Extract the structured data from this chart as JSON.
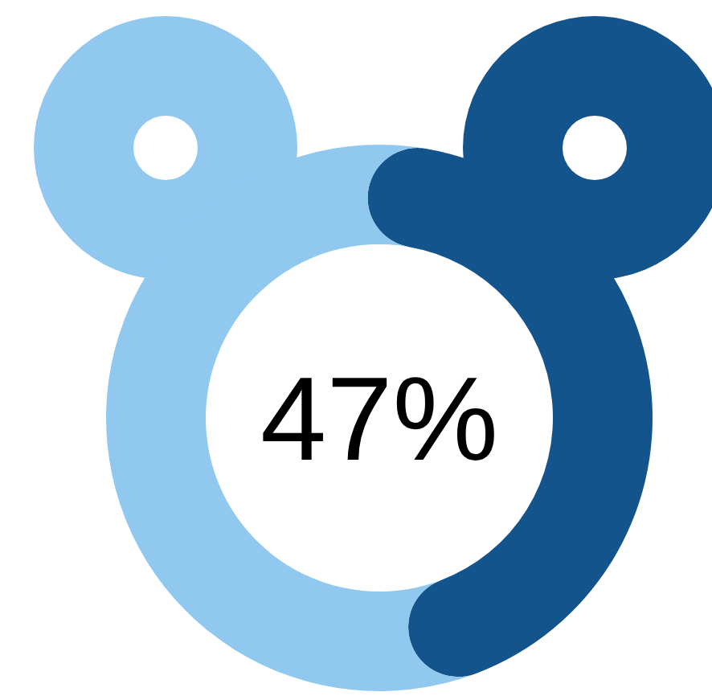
{
  "chart_data": {
    "type": "donut",
    "categories": [
      null,
      null
    ],
    "values": [
      47,
      53
    ],
    "colors": [
      "#14548c",
      "#90c8f0"
    ],
    "value_labels": [
      "47%",
      null
    ]
  }
}
